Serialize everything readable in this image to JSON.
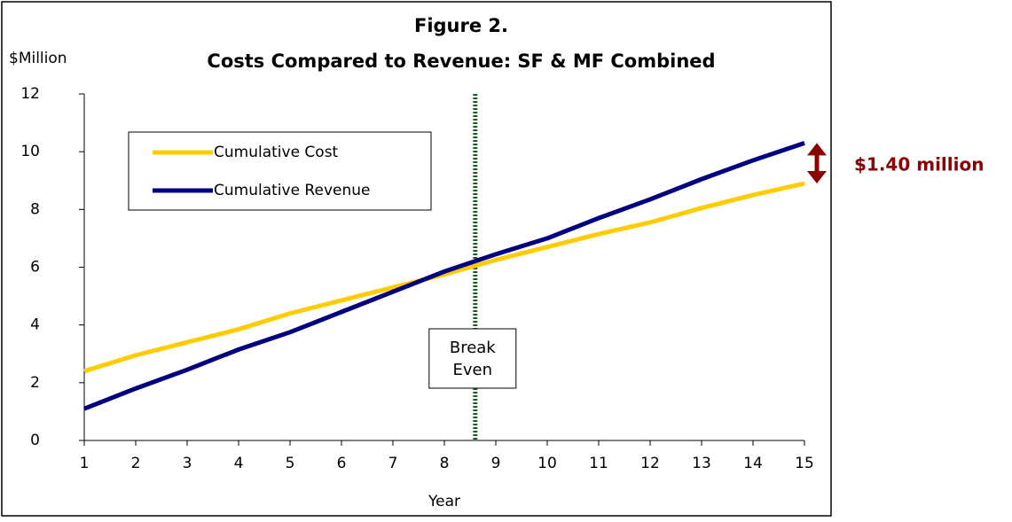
{
  "chart_data": {
    "type": "line",
    "title": "Figure 2.",
    "subtitle": "Costs Compared to Revenue: SF & MF Combined",
    "y_label": "$Million",
    "x_label": "Year",
    "x": [
      1,
      2,
      3,
      4,
      5,
      6,
      7,
      8,
      9,
      10,
      11,
      12,
      13,
      14,
      15
    ],
    "series": [
      {
        "name": "Cumulative Cost",
        "color": "#ffcc00",
        "values": [
          2.4,
          2.95,
          3.4,
          3.85,
          4.4,
          4.85,
          5.3,
          5.75,
          6.25,
          6.7,
          7.15,
          7.55,
          8.05,
          8.5,
          8.9
        ]
      },
      {
        "name": "Cumulative Revenue",
        "color": "#000080",
        "values": [
          1.1,
          1.8,
          2.45,
          3.15,
          3.75,
          4.45,
          5.15,
          5.85,
          6.45,
          7.0,
          7.7,
          8.35,
          9.05,
          9.7,
          10.3
        ]
      }
    ],
    "xlim": [
      1,
      15
    ],
    "xticks": [
      1,
      2,
      3,
      4,
      5,
      6,
      7,
      8,
      9,
      10,
      11,
      12,
      13,
      14,
      15
    ],
    "ylim": [
      0,
      12
    ],
    "yticks": [
      0,
      2,
      4,
      6,
      8,
      10,
      12
    ],
    "legend": "upper left",
    "break_even": {
      "x": 8.6,
      "label": [
        "Break",
        "Even"
      ],
      "color": "#1a5c1a"
    },
    "gap_annotation": {
      "label": "$1.40 million",
      "color": "#8b0000"
    }
  }
}
